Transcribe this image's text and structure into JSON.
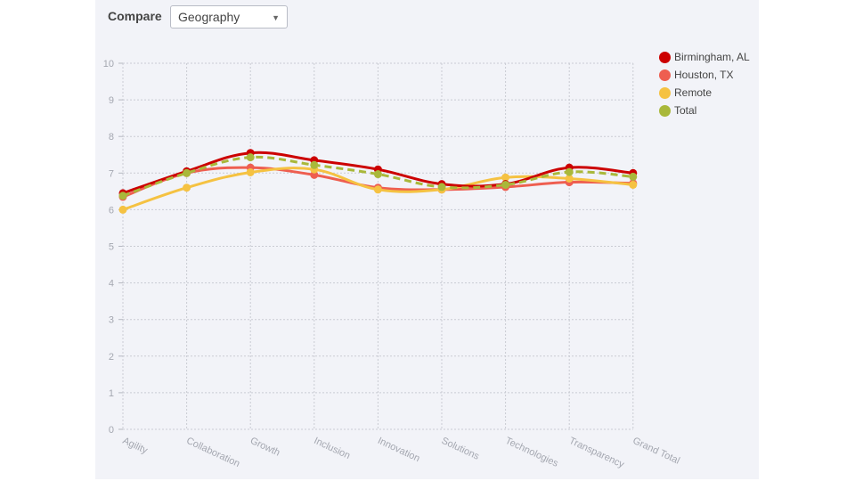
{
  "toolbar": {
    "compare_label": "Compare",
    "compare_value": "Geography"
  },
  "chart_data": {
    "type": "line",
    "categories": [
      "Agility",
      "Collaboration",
      "Growth",
      "Inclusion",
      "Innovation",
      "Solutions",
      "Technologies",
      "Transparency",
      "Grand Total"
    ],
    "ylim": [
      0,
      10
    ],
    "yticks": [
      0,
      1,
      2,
      3,
      4,
      5,
      6,
      7,
      8,
      9,
      10
    ],
    "grid": true,
    "legend": "top-right",
    "series": [
      {
        "name": "Birmingham, AL",
        "color": "#cc0000",
        "dashed": false,
        "values": [
          6.45,
          7.05,
          7.55,
          7.35,
          7.1,
          6.7,
          6.7,
          7.15,
          7.0
        ]
      },
      {
        "name": "Houston, TX",
        "color": "#ee5e50",
        "dashed": false,
        "values": [
          6.35,
          7.0,
          7.15,
          6.95,
          6.6,
          6.55,
          6.62,
          6.75,
          6.72
        ]
      },
      {
        "name": "Remote",
        "color": "#f5c242",
        "dashed": false,
        "values": [
          6.0,
          6.6,
          7.02,
          7.1,
          6.55,
          6.55,
          6.88,
          6.85,
          6.68
        ]
      },
      {
        "name": "Total",
        "color": "#a9b83a",
        "dashed": true,
        "values": [
          6.38,
          7.0,
          7.43,
          7.22,
          6.97,
          6.62,
          6.68,
          7.03,
          6.9
        ]
      }
    ]
  }
}
